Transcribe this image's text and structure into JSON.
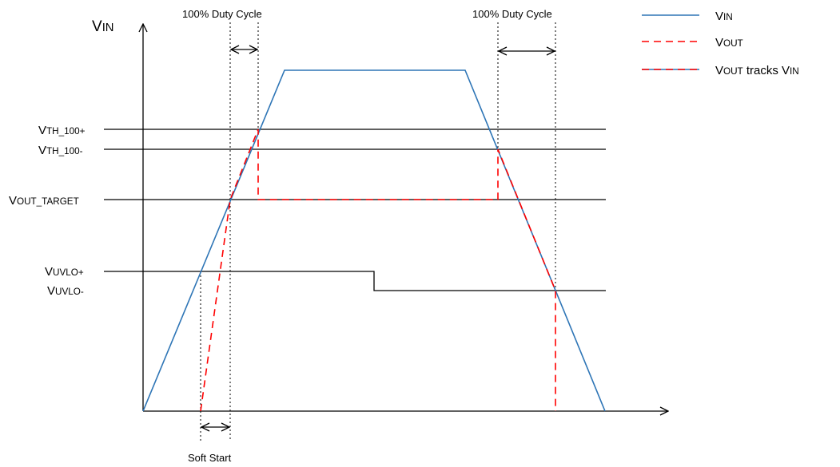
{
  "axes": {
    "y_label_main": "V",
    "y_label_sub": "IN"
  },
  "thresholds": [
    {
      "main": "V",
      "sub": "TH_100+"
    },
    {
      "main": "V",
      "sub": "TH_100-"
    },
    {
      "main": "V",
      "sub": "OUT_TARGET"
    },
    {
      "main": "V",
      "sub": "UVLO+"
    },
    {
      "main": "V",
      "sub": "UVLO-"
    }
  ],
  "annotations": {
    "duty_cycle_left": "100% Duty Cycle",
    "duty_cycle_right": "100% Duty Cycle",
    "soft_start": "Soft Start"
  },
  "legend": [
    {
      "main": "V",
      "sub": "IN",
      "suffix": "",
      "suffix_sub": ""
    },
    {
      "main": "V",
      "sub": "OUT",
      "suffix": "",
      "suffix_sub": ""
    },
    {
      "main": "V",
      "sub": "OUT",
      "suffix": " tracks V",
      "suffix_sub": "IN"
    }
  ],
  "colors": {
    "vin": "#2e75b6",
    "vout": "#ff0000",
    "axis": "#000000"
  }
}
